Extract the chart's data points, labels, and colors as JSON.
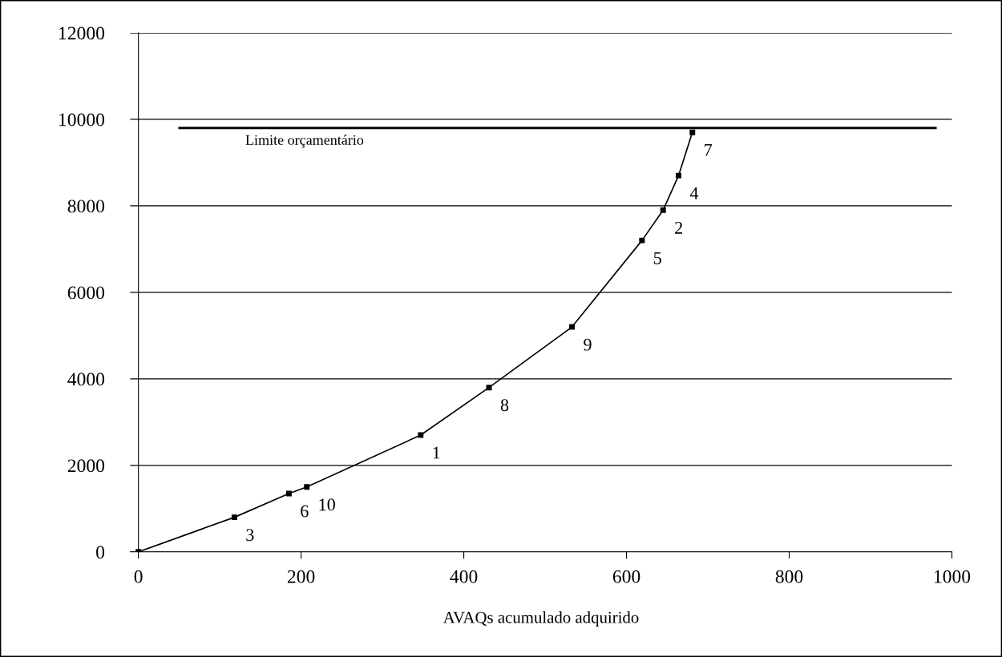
{
  "chart_data": {
    "type": "line",
    "xlabel": "AVAQs acumulado adquirido",
    "x": [
      0,
      118,
      185,
      207,
      347,
      431,
      533,
      619,
      645,
      664,
      681
    ],
    "series": [
      {
        "color": "#000000",
        "values": [
          0,
          800,
          1350,
          1500,
          2700,
          3800,
          5200,
          7200,
          7900,
          8700,
          9700
        ]
      }
    ],
    "marker": "square",
    "line_style": "solid",
    "grid": "y",
    "xlim": [
      -10,
      1000
    ],
    "ylim": [
      0,
      12000
    ],
    "xticks": [
      0,
      200,
      400,
      600,
      800,
      1000
    ],
    "yticks": [
      0,
      2000,
      4000,
      6000,
      8000,
      10000,
      12000
    ],
    "ref_lines": [
      {
        "axis": "y",
        "value": 9800,
        "label": "Limite orçamentário",
        "color": "#000000",
        "line_style": "solid"
      }
    ],
    "annotations": [
      {
        "text": "3",
        "x": 118,
        "y": 800
      },
      {
        "text": "6",
        "x": 185,
        "y": 1350
      },
      {
        "text": "10",
        "x": 207,
        "y": 1500
      },
      {
        "text": "1",
        "x": 347,
        "y": 2700
      },
      {
        "text": "8",
        "x": 431,
        "y": 3800
      },
      {
        "text": "9",
        "x": 533,
        "y": 5200
      },
      {
        "text": "5",
        "x": 619,
        "y": 7200
      },
      {
        "text": "2",
        "x": 645,
        "y": 7900
      },
      {
        "text": "4",
        "x": 664,
        "y": 8700
      },
      {
        "text": "7",
        "x": 681,
        "y": 9700
      }
    ]
  }
}
